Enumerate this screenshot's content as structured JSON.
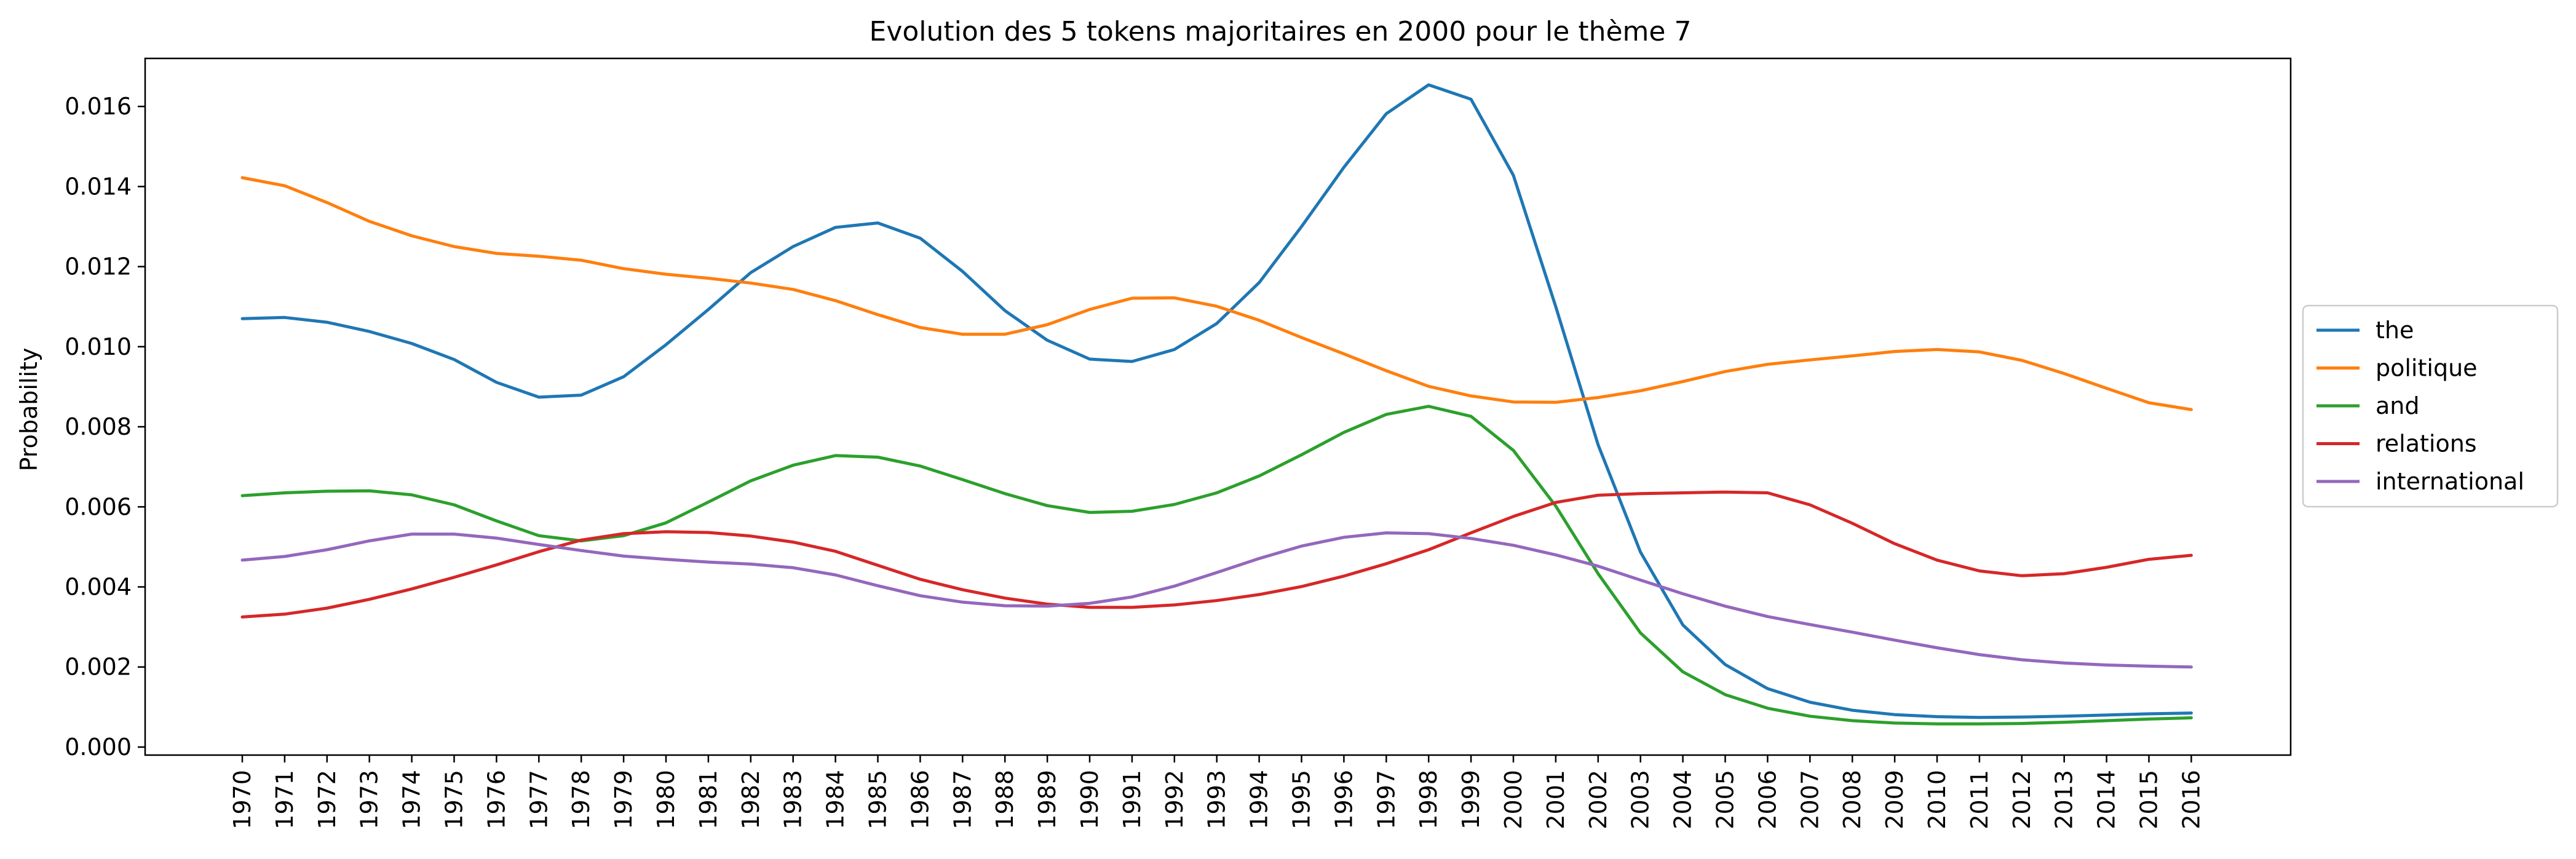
{
  "chart_data": {
    "type": "line",
    "title": "Evolution des 5 tokens majoritaires en 2000 pour le thème 7",
    "xlabel": "",
    "ylabel": "Probability",
    "x": [
      "1970",
      "1971",
      "1972",
      "1973",
      "1974",
      "1975",
      "1976",
      "1977",
      "1978",
      "1979",
      "1980",
      "1981",
      "1982",
      "1983",
      "1984",
      "1985",
      "1986",
      "1987",
      "1988",
      "1989",
      "1990",
      "1991",
      "1992",
      "1993",
      "1994",
      "1995",
      "1996",
      "1997",
      "1998",
      "1999",
      "2000",
      "2001",
      "2002",
      "2003",
      "2004",
      "2005",
      "2006",
      "2007",
      "2008",
      "2009",
      "2010",
      "2011",
      "2012",
      "2013",
      "2014",
      "2015",
      "2016"
    ],
    "ylim": [
      -0.0002,
      0.0172
    ],
    "yticks": [
      "0.000",
      "0.002",
      "0.004",
      "0.006",
      "0.008",
      "0.010",
      "0.012",
      "0.014",
      "0.016"
    ],
    "grid": false,
    "legend_position": "center-right-outside",
    "series": [
      {
        "name": "the",
        "color": "#1f77b4",
        "values": [
          0.0107,
          0.01073,
          0.01061,
          0.01038,
          0.01008,
          0.00968,
          0.00911,
          0.00874,
          0.00879,
          0.00925,
          0.01005,
          0.01093,
          0.01185,
          0.0125,
          0.01298,
          0.01309,
          0.01271,
          0.01188,
          0.0109,
          0.01016,
          0.00969,
          0.00963,
          0.00993,
          0.01058,
          0.0116,
          0.013,
          0.01448,
          0.01582,
          0.01654,
          0.01618,
          0.01428,
          0.011,
          0.00755,
          0.00487,
          0.00305,
          0.00206,
          0.00146,
          0.00112,
          0.00092,
          0.00081,
          0.00076,
          0.00074,
          0.00075,
          0.00077,
          0.0008,
          0.00083,
          0.00085
        ]
      },
      {
        "name": "politique",
        "color": "#ff7f0e",
        "values": [
          0.01422,
          0.01402,
          0.0136,
          0.01313,
          0.01277,
          0.0125,
          0.01233,
          0.01226,
          0.01216,
          0.01195,
          0.01181,
          0.01171,
          0.01159,
          0.01143,
          0.01115,
          0.0108,
          0.01048,
          0.01031,
          0.01031,
          0.01055,
          0.01093,
          0.01121,
          0.01122,
          0.01101,
          0.01066,
          0.01023,
          0.00982,
          0.0094,
          0.00901,
          0.00877,
          0.00862,
          0.00861,
          0.00873,
          0.0089,
          0.00913,
          0.00938,
          0.00956,
          0.00967,
          0.00977,
          0.00988,
          0.00993,
          0.00987,
          0.00966,
          0.00933,
          0.00896,
          0.0086,
          0.00843
        ]
      },
      {
        "name": "and",
        "color": "#2ca02c",
        "values": [
          0.00628,
          0.00635,
          0.00639,
          0.0064,
          0.0063,
          0.00605,
          0.00565,
          0.00528,
          0.00515,
          0.00528,
          0.0056,
          0.00612,
          0.00665,
          0.00704,
          0.00728,
          0.00724,
          0.00702,
          0.00668,
          0.00633,
          0.00603,
          0.00586,
          0.00589,
          0.00606,
          0.00635,
          0.00677,
          0.0073,
          0.00786,
          0.00831,
          0.00851,
          0.00826,
          0.00741,
          0.00602,
          0.00433,
          0.00285,
          0.00188,
          0.00131,
          0.00097,
          0.00077,
          0.00066,
          0.0006,
          0.00058,
          0.00058,
          0.00059,
          0.00062,
          0.00066,
          0.0007,
          0.00073
        ]
      },
      {
        "name": "relations",
        "color": "#d62728",
        "values": [
          0.00325,
          0.00332,
          0.00347,
          0.00369,
          0.00395,
          0.00424,
          0.00455,
          0.00488,
          0.00517,
          0.00533,
          0.00538,
          0.00536,
          0.00527,
          0.00512,
          0.00489,
          0.00454,
          0.00419,
          0.00393,
          0.00372,
          0.00357,
          0.00349,
          0.00349,
          0.00355,
          0.00366,
          0.00381,
          0.00401,
          0.00427,
          0.00458,
          0.00493,
          0.00535,
          0.00576,
          0.00611,
          0.00629,
          0.00633,
          0.00635,
          0.00637,
          0.00635,
          0.00605,
          0.00559,
          0.00508,
          0.00467,
          0.0044,
          0.00428,
          0.00433,
          0.00449,
          0.00469,
          0.00479
        ]
      },
      {
        "name": "international",
        "color": "#9467bd",
        "values": [
          0.00467,
          0.00476,
          0.00493,
          0.00515,
          0.00532,
          0.00532,
          0.00522,
          0.00506,
          0.00491,
          0.00477,
          0.00469,
          0.00462,
          0.00457,
          0.00448,
          0.0043,
          0.00403,
          0.00378,
          0.00362,
          0.00353,
          0.00352,
          0.00359,
          0.00375,
          0.00402,
          0.00436,
          0.00471,
          0.00502,
          0.00524,
          0.00535,
          0.00533,
          0.00521,
          0.00504,
          0.0048,
          0.00452,
          0.00417,
          0.00383,
          0.00352,
          0.00326,
          0.00306,
          0.00287,
          0.00267,
          0.00248,
          0.00231,
          0.00218,
          0.0021,
          0.00205,
          0.00202,
          0.002
        ]
      }
    ]
  }
}
